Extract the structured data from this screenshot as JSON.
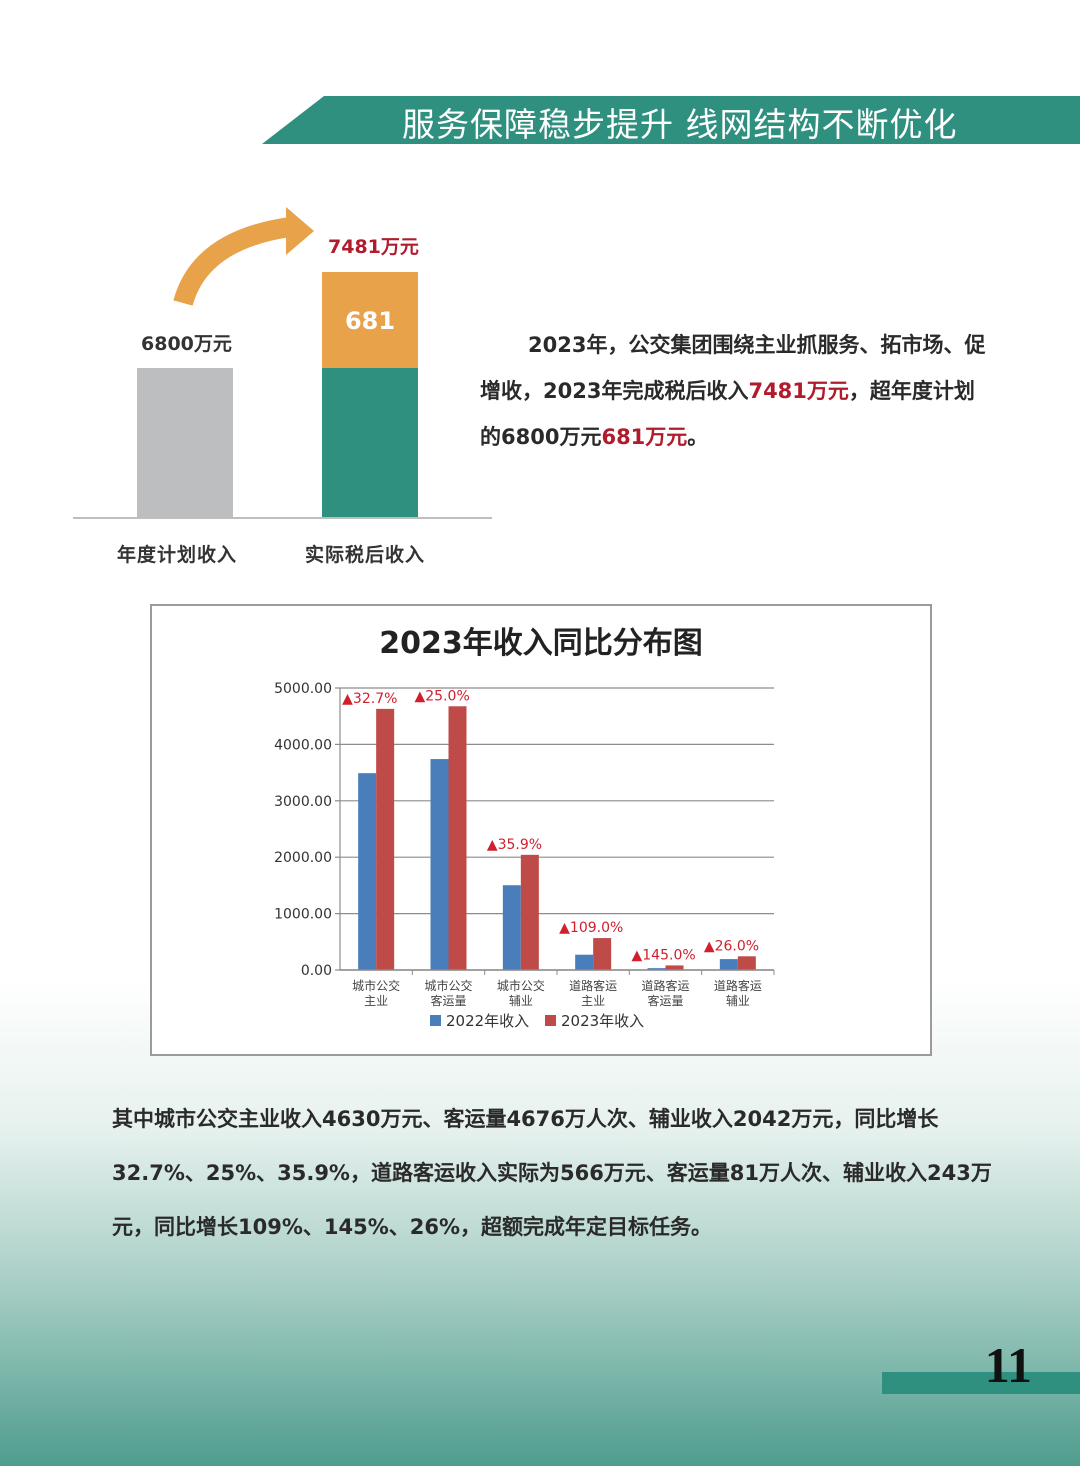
{
  "header": {
    "title": "服务保障稳步提升  线网结构不断优化",
    "accent_color": "#2f9080"
  },
  "top_chart": {
    "plan_value_label": "6800万元",
    "actual_value_label": "7481万元",
    "excess_label": "681",
    "categories": [
      "年度计划收入",
      "实际税后收入"
    ],
    "plan_value": 6800,
    "actual_value": 7481,
    "excess_value": 681,
    "colors": {
      "plan": "#bdbec0",
      "actual": "#2f9080",
      "excess": "#e8a24a",
      "arrow": "#e8a24a",
      "value_label": "#b01c2c"
    }
  },
  "intro": {
    "p1": "2023年，公交集团围绕主业抓服务、拓市场、促增收，2023年完成税后收入",
    "v1": "7481万元",
    "p2": "，超年度计划的6800万元",
    "v2": "681万元",
    "p3": "。"
  },
  "chart_data": {
    "type": "bar",
    "title": "2023年收入同比分布图",
    "categories": [
      [
        "城市公交",
        "主业"
      ],
      [
        "城市公交",
        "客运量"
      ],
      [
        "城市公交",
        "辅业"
      ],
      [
        "道路客运",
        "主业"
      ],
      [
        "道路客运",
        "客运量"
      ],
      [
        "道路客运",
        "辅业"
      ]
    ],
    "series": [
      {
        "name": "2022年收入",
        "color": "#4a7ebb",
        "values": [
          3490,
          3740,
          1503,
          271,
          33,
          193
        ]
      },
      {
        "name": "2023年收入",
        "color": "#be4b48",
        "values": [
          4630,
          4676,
          2042,
          566,
          81,
          243
        ]
      }
    ],
    "growth_labels": [
      "▲32.7%",
      "▲25.0%",
      "▲35.9%",
      "▲109.0%",
      "▲145.0%",
      "▲26.0%"
    ],
    "y_ticks": [
      "0.00",
      "1000.00",
      "2000.00",
      "3000.00",
      "4000.00",
      "5000.00"
    ],
    "ylim": [
      0,
      5000
    ],
    "grid": true,
    "legend": "bottom"
  },
  "body_text": "其中城市公交主业收入4630万元、客运量4676万人次、辅业收入2042万元，同比增长32.7%、25%、35.9%，道路客运收入实际为566万元、客运量81万人次、辅业收入243万元，同比增长109%、145%、26%，超额完成年定目标任务。",
  "page_number": "11"
}
